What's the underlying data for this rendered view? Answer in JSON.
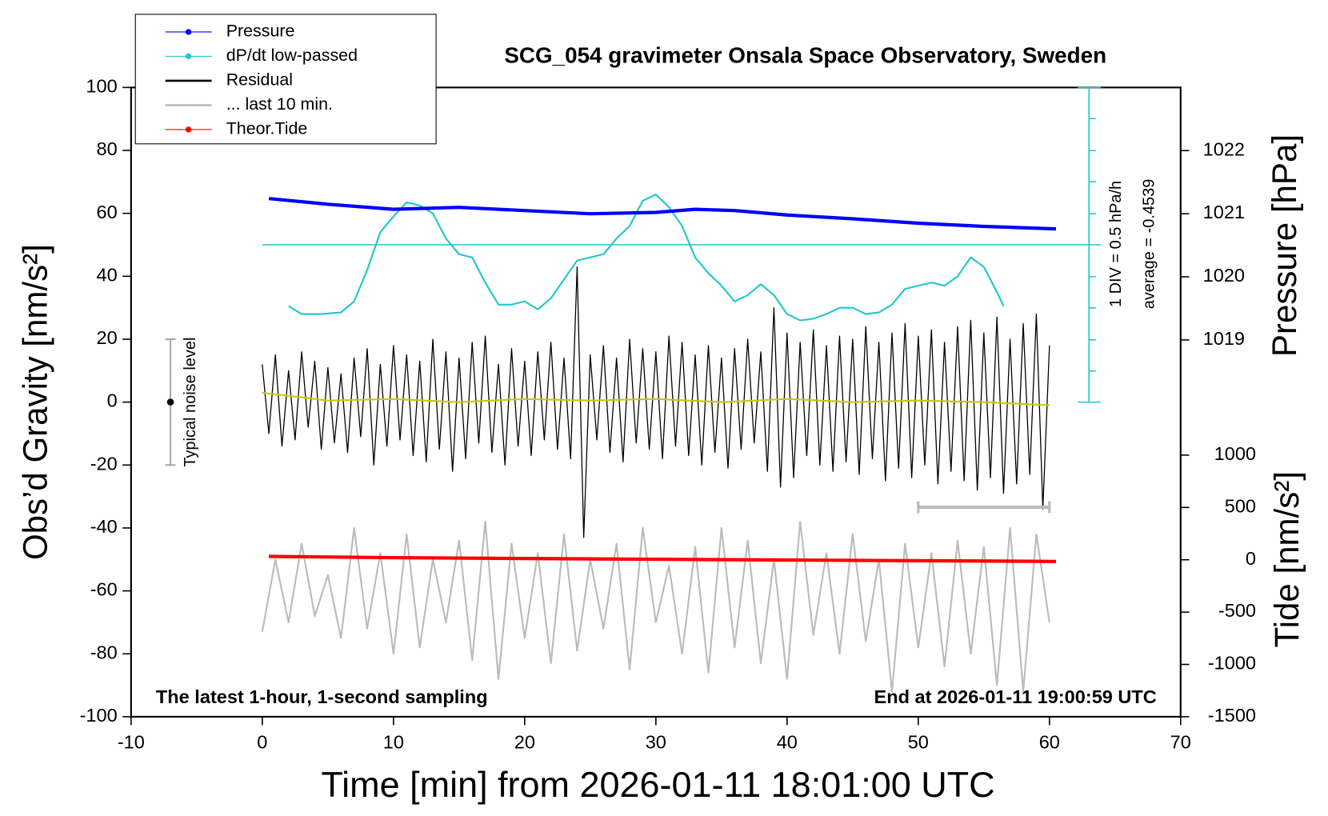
{
  "chart_data": {
    "type": "line",
    "title": "SCG_054 gravimeter Onsala Space Observatory, Sweden",
    "x_label": "Time [min] from 2026-01-11 18:01:00 UTC",
    "y_label": "Obs’d Gravity [nm/s²]",
    "y2_label": "Pressure [hPa]",
    "y3_label": "Tide [nm/s²]",
    "annotation_left": "The latest 1-hour, 1-second sampling",
    "annotation_right": "End at 2026-01-11 19:00:59 UTC",
    "dpdt_scale_label": "1 DIV = 0.5 hPa/h",
    "dpdt_average_label": "average = -0.4539",
    "xlim": [
      -10,
      70
    ],
    "xticks": [
      -10,
      0,
      10,
      20,
      30,
      40,
      50,
      60,
      70
    ],
    "ylim": [
      -100,
      100
    ],
    "yticks": [
      -100,
      -80,
      -60,
      -40,
      -20,
      0,
      20,
      40,
      60,
      80,
      100
    ],
    "y2lim": [
      1013.03,
      1023
    ],
    "y2ticks": [
      1019,
      1020,
      1021,
      1022
    ],
    "y3lim": [
      -1500,
      4513
    ],
    "y3ticks": [
      -1500,
      -1000,
      -500,
      0,
      500,
      1000
    ],
    "legend": "top-left",
    "series": [
      {
        "name": "Pressure",
        "color": "#0000ff",
        "axis": "y2",
        "marker": true,
        "x": [
          0.5,
          5,
          10,
          15,
          20,
          25,
          30,
          33,
          36,
          40,
          45,
          50,
          55,
          60.5
        ],
        "values": [
          1021.24,
          1021.15,
          1021.07,
          1021.1,
          1021.05,
          1021.0,
          1021.02,
          1021.07,
          1021.05,
          1020.98,
          1020.92,
          1020.85,
          1020.8,
          1020.76
        ]
      },
      {
        "name": "dP/dt low-passed",
        "color": "#20c8c8",
        "axis": "y",
        "marker": true,
        "average_level": 50,
        "x": [
          2,
          3,
          4.5,
          6,
          7,
          8,
          9,
          10,
          11,
          12,
          13,
          14,
          15,
          16,
          17,
          18,
          19,
          20,
          21,
          22,
          23,
          24,
          25,
          26,
          27,
          28,
          29,
          30,
          31,
          32,
          33,
          34,
          35,
          36,
          37,
          38,
          39,
          40,
          41,
          42,
          43,
          44,
          45,
          46,
          47,
          48,
          49,
          50,
          51,
          52,
          53,
          54,
          55,
          56,
          56.5
        ],
        "values": [
          30.5,
          28,
          28,
          28.5,
          32,
          42,
          54,
          59,
          63.5,
          62.5,
          60,
          52,
          47,
          46,
          38,
          31,
          31,
          32,
          29.5,
          33,
          39,
          45,
          46,
          47,
          52,
          56,
          64,
          66,
          62,
          56,
          46,
          41,
          37,
          32,
          34,
          37.5,
          34,
          28,
          26,
          26.5,
          28,
          30,
          30,
          28,
          28.5,
          31,
          36,
          37,
          38,
          37,
          40,
          46,
          43,
          35,
          30.5
        ]
      },
      {
        "name": "Residual",
        "color": "#000000",
        "axis": "y",
        "marker": false,
        "x": [
          0,
          0.5,
          1,
          1.5,
          2,
          2.5,
          3,
          3.5,
          4,
          4.5,
          5,
          5.5,
          6,
          6.5,
          7,
          7.5,
          8,
          8.5,
          9,
          9.5,
          10,
          10.5,
          11,
          11.5,
          12,
          12.5,
          13,
          13.5,
          14,
          14.5,
          15,
          15.5,
          16,
          16.5,
          17,
          17.5,
          18,
          18.5,
          19,
          19.5,
          20,
          20.5,
          21,
          21.5,
          22,
          22.5,
          23,
          23.5,
          24,
          24.5,
          25,
          25.5,
          26,
          26.5,
          27,
          27.5,
          28,
          28.5,
          29,
          29.5,
          30,
          30.5,
          31,
          31.5,
          32,
          32.5,
          33,
          33.5,
          34,
          34.5,
          35,
          35.5,
          36,
          36.5,
          37,
          37.5,
          38,
          38.5,
          39,
          39.5,
          40,
          40.5,
          41,
          41.5,
          42,
          42.5,
          43,
          43.5,
          44,
          44.5,
          45,
          45.5,
          46,
          46.5,
          47,
          47.5,
          48,
          48.5,
          49,
          49.5,
          50,
          50.5,
          51,
          51.5,
          52,
          52.5,
          53,
          53.5,
          54,
          54.5,
          55,
          55.5,
          56,
          56.5,
          57,
          57.5,
          58,
          58.5,
          59,
          59.5,
          60
        ],
        "values": [
          12,
          -10,
          15,
          -14,
          10,
          -12,
          16,
          -8,
          13,
          -15,
          11,
          -13,
          9,
          -16,
          14,
          -11,
          17,
          -20,
          12,
          -14,
          18,
          -12,
          15,
          -17,
          13,
          -19,
          20,
          -15,
          16,
          -22,
          14,
          -18,
          19,
          -13,
          21,
          -16,
          12,
          -20,
          17,
          -14,
          13,
          -17,
          16,
          -12,
          19,
          -15,
          14,
          -18,
          43,
          -43,
          15,
          -12,
          18,
          -16,
          14,
          -19,
          20,
          -13,
          17,
          -15,
          16,
          -18,
          21,
          -14,
          19,
          -17,
          15,
          -20,
          18,
          -16,
          14,
          -21,
          17,
          -15,
          20,
          -13,
          16,
          -22,
          30,
          -27,
          22,
          -24,
          19,
          -17,
          23,
          -20,
          18,
          -22,
          21,
          -19,
          20,
          -23,
          24,
          -18,
          19,
          -25,
          22,
          -21,
          25,
          -24,
          21,
          -20,
          23,
          -26,
          19,
          -22,
          24,
          -25,
          26,
          -28,
          22,
          -24,
          27,
          -29,
          20,
          -26,
          25,
          -23,
          28,
          -34,
          18
        ]
      },
      {
        "name": "... last 10 min.",
        "color": "#bbbbbb",
        "axis": "y",
        "marker": false,
        "x": [
          0,
          1,
          2,
          3,
          4,
          5,
          6,
          7,
          8,
          9,
          10,
          11,
          12,
          13,
          14,
          15,
          16,
          17,
          18,
          19,
          20,
          21,
          22,
          23,
          24,
          25,
          26,
          27,
          28,
          29,
          30,
          31,
          32,
          33,
          34,
          35,
          36,
          37,
          38,
          39,
          40,
          41,
          42,
          43,
          44,
          45,
          46,
          47,
          48,
          49,
          50,
          51,
          52,
          53,
          54,
          55,
          56,
          57,
          58,
          59,
          60
        ],
        "values": [
          -73,
          -50,
          -70,
          -45,
          -68,
          -55,
          -75,
          -40,
          -72,
          -48,
          -80,
          -42,
          -78,
          -50,
          -70,
          -44,
          -82,
          -38,
          -88,
          -45,
          -75,
          -48,
          -83,
          -42,
          -79,
          -50,
          -72,
          -45,
          -85,
          -40,
          -70,
          -52,
          -80,
          -46,
          -86,
          -40,
          -78,
          -44,
          -83,
          -50,
          -88,
          -38,
          -74,
          -48,
          -80,
          -42,
          -76,
          -50,
          -92,
          -45,
          -78,
          -48,
          -84,
          -44,
          -80,
          -46,
          -90,
          -40,
          -92,
          -42,
          -70
        ]
      },
      {
        "name": "Theor.Tide",
        "color": "#ff0000",
        "axis": "y3",
        "marker": true,
        "x": [
          0.5,
          10,
          20,
          30,
          40,
          50,
          60.5
        ],
        "values": [
          32,
          20,
          12,
          5,
          -2,
          -9,
          -16
        ]
      }
    ],
    "smoothed": {
      "color": "#c8c800",
      "x": [
        0,
        5,
        10,
        15,
        20,
        25,
        30,
        35,
        40,
        45,
        50,
        55,
        60
      ],
      "values": [
        3,
        0.5,
        1,
        0,
        1,
        0.5,
        1,
        0,
        1,
        0,
        0.5,
        0,
        -1
      ]
    },
    "noise_level": {
      "label": "Typical noise level",
      "x": -7,
      "low": -20,
      "high": 20,
      "center": 0
    },
    "last_10min_bar": {
      "x": [
        50,
        60
      ],
      "y": -33.4
    }
  }
}
